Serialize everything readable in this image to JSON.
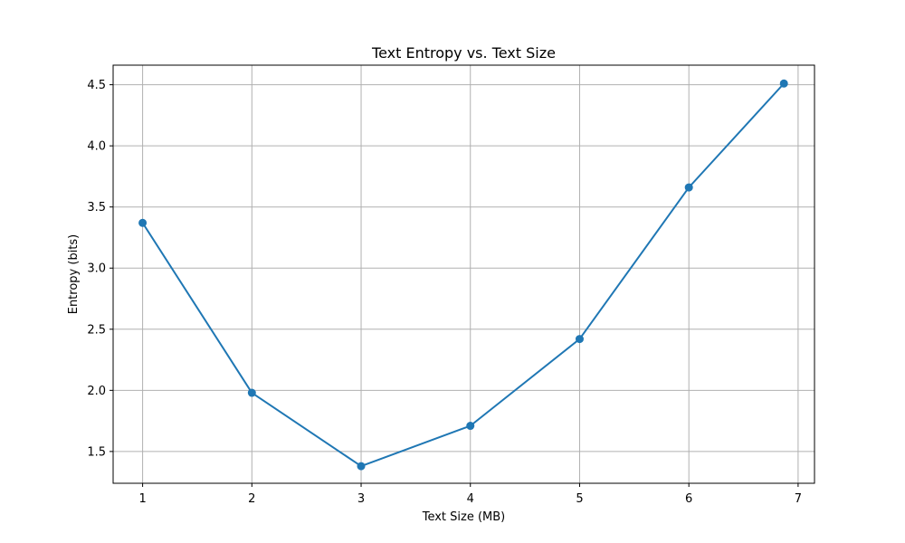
{
  "chart_data": {
    "type": "line",
    "title": "Text Entropy vs. Text Size",
    "xlabel": "Text Size (MB)",
    "ylabel": "Entropy (bits)",
    "xlim": [
      0.73,
      7.15
    ],
    "ylim": [
      1.24,
      4.66
    ],
    "xticks": [
      "1",
      "2",
      "3",
      "4",
      "5",
      "6",
      "7"
    ],
    "yticks": [
      "1.5",
      "2.0",
      "2.5",
      "3.0",
      "3.5",
      "4.0",
      "4.5"
    ],
    "grid": true,
    "series": [
      {
        "color": "#1f77b4",
        "marker": "circle",
        "x": [
          1,
          2,
          3,
          4,
          5,
          6,
          6.87
        ],
        "y": [
          3.37,
          1.98,
          1.38,
          1.71,
          2.42,
          3.66,
          4.51
        ]
      }
    ]
  }
}
